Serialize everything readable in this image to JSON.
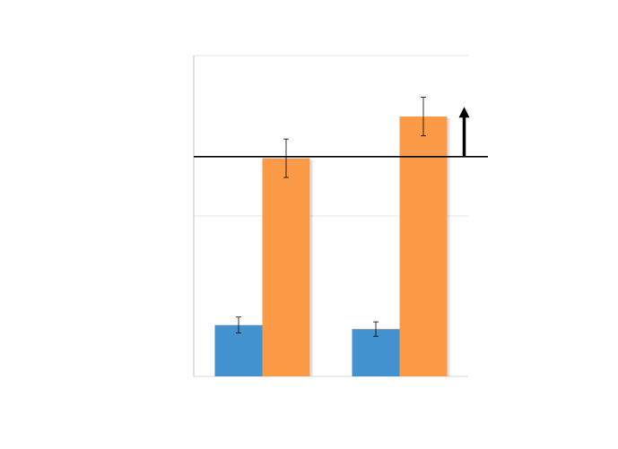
{
  "chart_data": {
    "type": "bar",
    "title": "",
    "xlabel": "",
    "ylabel": "",
    "ylim": [
      0,
      2
    ],
    "grid": true,
    "legend": "none",
    "categories": [
      "",
      ""
    ],
    "series": [
      {
        "values": [
          0.32,
          0.295
        ],
        "errors": [
          0.05,
          0.045
        ],
        "color": "#4393d0"
      },
      {
        "values": [
          1.36,
          1.62
        ],
        "errors": [
          0.12,
          0.12
        ],
        "color": "#fb9a47"
      }
    ],
    "reference_line": {
      "y": 1.37,
      "color": "#000000"
    },
    "annotation": {
      "type": "arrow-up",
      "category_index": 1,
      "from": 1.37,
      "to": 1.68,
      "color": "#000000"
    }
  }
}
